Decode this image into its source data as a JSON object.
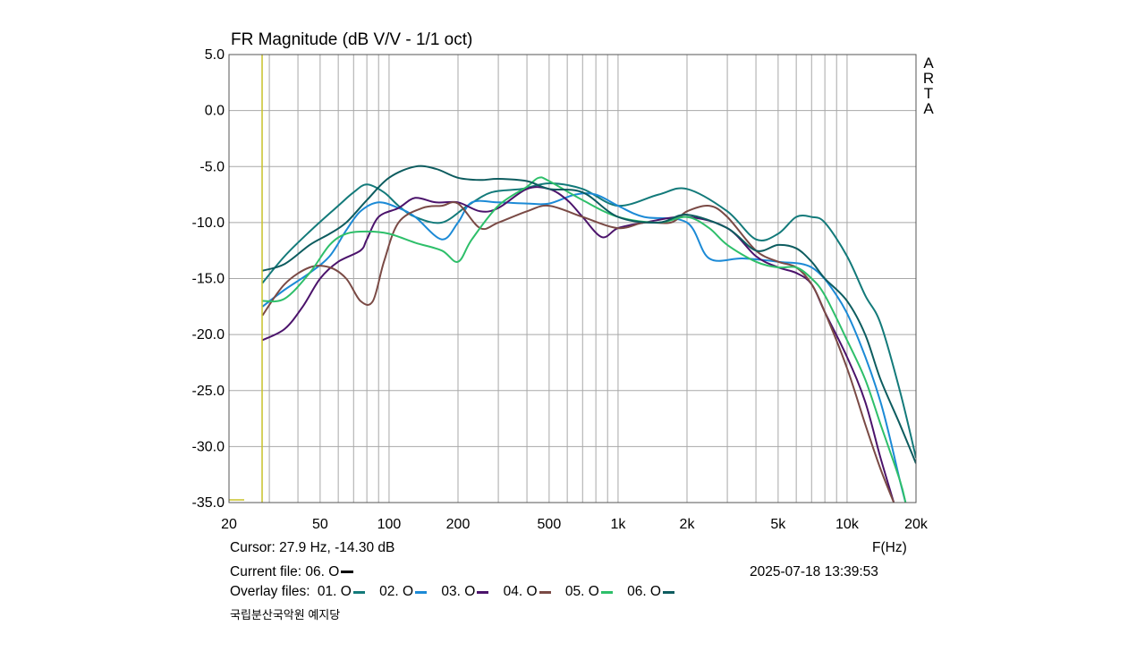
{
  "chart_data": {
    "type": "line",
    "title": "FR Magnitude (dB V/V - 1/1 oct)",
    "xlabel": "F(Hz)",
    "x_scale": "log",
    "xlim": [
      20,
      20000
    ],
    "ylim": [
      -35,
      5
    ],
    "x_tick_values": [
      20,
      50,
      100,
      200,
      500,
      1000,
      2000,
      5000,
      10000,
      20000
    ],
    "x_tick_labels": [
      "20",
      "50",
      "100",
      "200",
      "500",
      "1k",
      "2k",
      "5k",
      "10k",
      "20k"
    ],
    "y_tick_values": [
      5,
      0,
      -5,
      -10,
      -15,
      -20,
      -25,
      -30,
      -35
    ],
    "y_tick_labels": [
      "5.0",
      "0.0",
      "-5.0",
      "-10.0",
      "-15.0",
      "-20.0",
      "-25.0",
      "-30.0",
      "-35.0"
    ],
    "grid": true,
    "cursor_hz": 27.9,
    "series": [
      {
        "name": "01. O",
        "color": "#137a7a",
        "points": [
          [
            28,
            -15.4
          ],
          [
            35,
            -13
          ],
          [
            45,
            -10.8
          ],
          [
            60,
            -8.5
          ],
          [
            70,
            -7.3
          ],
          [
            80,
            -6.6
          ],
          [
            95,
            -7.3
          ],
          [
            110,
            -8.5
          ],
          [
            130,
            -9.5
          ],
          [
            170,
            -10
          ],
          [
            220,
            -8.5
          ],
          [
            280,
            -7.3
          ],
          [
            380,
            -7
          ],
          [
            500,
            -6.5
          ],
          [
            700,
            -7
          ],
          [
            1000,
            -8.5
          ],
          [
            1500,
            -7.5
          ],
          [
            2000,
            -7
          ],
          [
            3000,
            -9
          ],
          [
            4000,
            -11.5
          ],
          [
            5000,
            -11
          ],
          [
            6000,
            -9.5
          ],
          [
            7000,
            -9.5
          ],
          [
            8000,
            -10
          ],
          [
            10000,
            -13
          ],
          [
            12000,
            -16.5
          ],
          [
            14000,
            -19
          ],
          [
            17000,
            -25
          ],
          [
            20000,
            -31
          ]
        ]
      },
      {
        "name": "02. O",
        "color": "#1c8ad6",
        "points": [
          [
            28,
            -17.5
          ],
          [
            35,
            -16
          ],
          [
            45,
            -14.5
          ],
          [
            55,
            -13
          ],
          [
            65,
            -10.7
          ],
          [
            75,
            -9
          ],
          [
            90,
            -8.2
          ],
          [
            110,
            -8.7
          ],
          [
            130,
            -9.5
          ],
          [
            170,
            -11.5
          ],
          [
            200,
            -10
          ],
          [
            230,
            -8.2
          ],
          [
            300,
            -8.2
          ],
          [
            400,
            -8.3
          ],
          [
            500,
            -8.3
          ],
          [
            650,
            -7.5
          ],
          [
            800,
            -7.5
          ],
          [
            1000,
            -8.5
          ],
          [
            1300,
            -9.5
          ],
          [
            2000,
            -10
          ],
          [
            2500,
            -13.2
          ],
          [
            3500,
            -13.2
          ],
          [
            5000,
            -13.5
          ],
          [
            7000,
            -14
          ],
          [
            9000,
            -16.5
          ],
          [
            11000,
            -20
          ],
          [
            14000,
            -26
          ],
          [
            17000,
            -33
          ],
          [
            18000,
            -35
          ]
        ]
      },
      {
        "name": "03. O",
        "color": "#4b136b",
        "points": [
          [
            28,
            -20.5
          ],
          [
            35,
            -19.5
          ],
          [
            42,
            -17.5
          ],
          [
            50,
            -15
          ],
          [
            60,
            -13.5
          ],
          [
            75,
            -12.5
          ],
          [
            80,
            -11.5
          ],
          [
            90,
            -9.5
          ],
          [
            110,
            -8.7
          ],
          [
            130,
            -7.8
          ],
          [
            160,
            -8.2
          ],
          [
            200,
            -8.2
          ],
          [
            250,
            -9
          ],
          [
            300,
            -8.7
          ],
          [
            400,
            -7
          ],
          [
            500,
            -7
          ],
          [
            600,
            -8
          ],
          [
            700,
            -9.5
          ],
          [
            850,
            -11.3
          ],
          [
            1000,
            -10.5
          ],
          [
            1300,
            -10
          ],
          [
            2000,
            -9.5
          ],
          [
            3000,
            -10.5
          ],
          [
            4000,
            -13
          ],
          [
            5000,
            -14
          ],
          [
            6000,
            -14.5
          ],
          [
            7000,
            -15.5
          ],
          [
            8000,
            -18
          ],
          [
            10000,
            -22
          ],
          [
            12000,
            -26
          ],
          [
            14000,
            -31
          ],
          [
            16000,
            -35
          ]
        ]
      },
      {
        "name": "04. O",
        "color": "#7a4a45",
        "points": [
          [
            28,
            -18.3
          ],
          [
            35,
            -15.5
          ],
          [
            45,
            -14
          ],
          [
            55,
            -14
          ],
          [
            65,
            -15
          ],
          [
            75,
            -17
          ],
          [
            85,
            -17
          ],
          [
            95,
            -13.5
          ],
          [
            110,
            -10
          ],
          [
            140,
            -8.7
          ],
          [
            170,
            -8.5
          ],
          [
            200,
            -8.3
          ],
          [
            250,
            -10.5
          ],
          [
            300,
            -10
          ],
          [
            400,
            -9
          ],
          [
            500,
            -8.5
          ],
          [
            700,
            -9.5
          ],
          [
            1000,
            -10.5
          ],
          [
            1300,
            -10
          ],
          [
            1700,
            -10
          ],
          [
            2000,
            -9
          ],
          [
            2500,
            -8.5
          ],
          [
            3000,
            -9.5
          ],
          [
            4000,
            -12.5
          ],
          [
            5000,
            -13.5
          ],
          [
            6000,
            -14
          ],
          [
            7000,
            -15.5
          ],
          [
            8000,
            -18
          ],
          [
            10000,
            -23
          ],
          [
            12000,
            -28
          ],
          [
            14000,
            -32
          ],
          [
            16000,
            -35
          ]
        ]
      },
      {
        "name": "05. O",
        "color": "#2ebf6a",
        "points": [
          [
            28,
            -17
          ],
          [
            35,
            -16.8
          ],
          [
            45,
            -14.5
          ],
          [
            55,
            -12
          ],
          [
            65,
            -11
          ],
          [
            80,
            -10.8
          ],
          [
            100,
            -11
          ],
          [
            130,
            -11.8
          ],
          [
            170,
            -12.5
          ],
          [
            200,
            -13.5
          ],
          [
            230,
            -11.5
          ],
          [
            300,
            -8.5
          ],
          [
            400,
            -6.8
          ],
          [
            450,
            -6
          ],
          [
            500,
            -6.3
          ],
          [
            700,
            -8
          ],
          [
            1000,
            -9.5
          ],
          [
            1500,
            -10
          ],
          [
            2000,
            -9.5
          ],
          [
            2500,
            -10.5
          ],
          [
            3000,
            -12
          ],
          [
            4000,
            -13.5
          ],
          [
            5000,
            -14
          ],
          [
            6000,
            -14
          ],
          [
            7000,
            -15
          ],
          [
            8000,
            -16.5
          ],
          [
            10000,
            -20.5
          ],
          [
            12000,
            -24
          ],
          [
            14000,
            -28
          ],
          [
            17000,
            -33
          ],
          [
            18000,
            -35
          ]
        ]
      },
      {
        "name": "06. O",
        "color": "#0d5c5f",
        "points": [
          [
            28,
            -14.3
          ],
          [
            35,
            -13.7
          ],
          [
            45,
            -12
          ],
          [
            55,
            -11
          ],
          [
            65,
            -10
          ],
          [
            80,
            -8
          ],
          [
            100,
            -6
          ],
          [
            130,
            -5
          ],
          [
            160,
            -5.2
          ],
          [
            200,
            -6
          ],
          [
            250,
            -6.2
          ],
          [
            300,
            -6.1
          ],
          [
            400,
            -6.3
          ],
          [
            500,
            -7
          ],
          [
            700,
            -7.3
          ],
          [
            1000,
            -9.5
          ],
          [
            1500,
            -10
          ],
          [
            2000,
            -9.3
          ],
          [
            3000,
            -10.5
          ],
          [
            4000,
            -12.5
          ],
          [
            5000,
            -12
          ],
          [
            6000,
            -12.3
          ],
          [
            7000,
            -13.5
          ],
          [
            8000,
            -15
          ],
          [
            10000,
            -17
          ],
          [
            12000,
            -20
          ],
          [
            14000,
            -24
          ],
          [
            17000,
            -28
          ],
          [
            20000,
            -31.5
          ]
        ]
      }
    ]
  },
  "cursor_text": "Cursor: 27.9 Hz, -14.30 dB",
  "axis_unit_text": "F(Hz)",
  "current_file": {
    "label": "Current file: 06. O",
    "color": "#000000"
  },
  "timestamp": "2025-07-18   13:39:53",
  "overlay": {
    "label": "Overlay files:",
    "items": [
      {
        "name": "01. O",
        "color": "#137a7a"
      },
      {
        "name": "02. O",
        "color": "#1c8ad6"
      },
      {
        "name": "03. O",
        "color": "#4b136b"
      },
      {
        "name": "04. O",
        "color": "#7a4a45"
      },
      {
        "name": "05. O",
        "color": "#2ebf6a"
      },
      {
        "name": "06. O",
        "color": "#0d5c5f"
      }
    ]
  },
  "venue": "국립분산국악원 예지당",
  "watermark": [
    "A",
    "R",
    "T",
    "A"
  ],
  "cursor_color": "#c8c228",
  "grid_color": "#a8a8a8"
}
